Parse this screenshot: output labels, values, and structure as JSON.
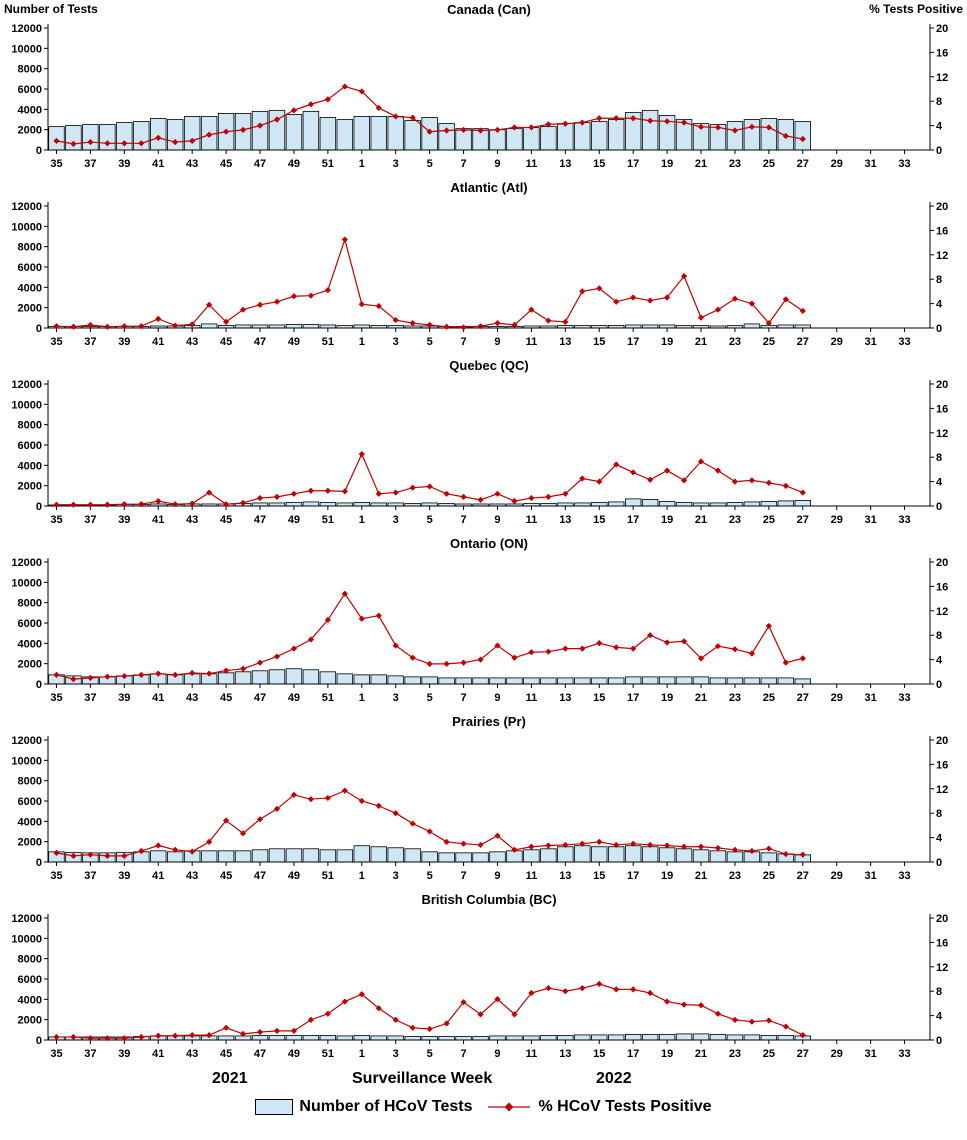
{
  "page": {
    "left_axis_title": "Number of Tests",
    "right_axis_title": "% Tests Positive",
    "xlabel": "Surveillance Week",
    "year_left": "2021",
    "year_right": "2022"
  },
  "legend": {
    "bars": "Number of HCoV Tests",
    "line": "% HCoV Tests Positive"
  },
  "colors": {
    "bar_fill": "#cfe6f5",
    "bar_border": "#000000",
    "line": "#c00000"
  },
  "chart_data": {
    "type": "bar",
    "note": "combo bar+line panels; bars = Number of HCoV Tests (left axis), line = % HCoV Tests Positive (right axis)",
    "x_weeks": [
      35,
      36,
      37,
      38,
      39,
      40,
      41,
      42,
      43,
      44,
      45,
      46,
      47,
      48,
      49,
      50,
      51,
      52,
      1,
      2,
      3,
      4,
      5,
      6,
      7,
      8,
      9,
      10,
      11,
      12,
      13,
      14,
      15,
      16,
      17,
      18,
      19,
      20,
      21,
      22,
      23,
      24,
      25,
      26,
      27,
      28,
      29,
      30,
      31,
      32,
      33,
      34
    ],
    "x_tick_step": 2,
    "left_axis": {
      "title": "Number of Tests",
      "min": 0,
      "max": 12000,
      "tick": 2000
    },
    "right_axis": {
      "title": "% Tests Positive",
      "min": 0,
      "max": 20,
      "tick": 4
    },
    "panels": [
      {
        "title": "Canada (Can)",
        "bars": [
          2300,
          2400,
          2500,
          2500,
          2700,
          2800,
          3100,
          3000,
          3300,
          3300,
          3600,
          3600,
          3800,
          3900,
          3500,
          3800,
          3200,
          3000,
          3300,
          3300,
          3300,
          2900,
          3200,
          2600,
          2100,
          2100,
          2000,
          2100,
          2200,
          2300,
          2600,
          2700,
          2800,
          3000,
          3700,
          3900,
          3400,
          3000,
          2600,
          2500,
          2800,
          3000,
          3100,
          3000,
          2800
        ],
        "line": [
          1.5,
          1.0,
          1.3,
          1.1,
          1.1,
          1.1,
          2.0,
          1.3,
          1.5,
          2.5,
          3.0,
          3.3,
          4.0,
          5.0,
          6.5,
          7.5,
          8.3,
          10.4,
          9.6,
          6.9,
          5.5,
          5.3,
          3.0,
          3.2,
          3.3,
          3.2,
          3.3,
          3.7,
          3.7,
          4.2,
          4.3,
          4.5,
          5.2,
          5.2,
          5.2,
          4.8,
          4.7,
          4.5,
          3.8,
          3.7,
          3.2,
          3.8,
          3.7,
          2.3,
          1.8
        ]
      },
      {
        "title": "Atlantic (Atl)",
        "bars": [
          150,
          150,
          150,
          150,
          150,
          150,
          200,
          200,
          250,
          400,
          250,
          300,
          300,
          300,
          350,
          350,
          300,
          250,
          300,
          250,
          250,
          200,
          200,
          150,
          150,
          150,
          150,
          150,
          200,
          200,
          250,
          250,
          250,
          250,
          300,
          300,
          300,
          250,
          250,
          200,
          250,
          400,
          250,
          300,
          300
        ],
        "line": [
          0.3,
          0.2,
          0.5,
          0.2,
          0.3,
          0.3,
          1.5,
          0.4,
          0.6,
          3.8,
          1.0,
          3.0,
          3.8,
          4.3,
          5.2,
          5.3,
          6.2,
          14.5,
          3.9,
          3.6,
          1.3,
          0.8,
          0.5,
          0.2,
          0.1,
          0.3,
          0.8,
          0.5,
          3.0,
          1.2,
          1.0,
          6.0,
          6.5,
          4.3,
          5.0,
          4.5,
          5.0,
          8.5,
          1.7,
          3.0,
          4.8,
          4.0,
          0.8,
          4.7,
          2.8
        ]
      },
      {
        "title": "Quebec (QC)",
        "bars": [
          100,
          100,
          100,
          100,
          150,
          150,
          200,
          150,
          200,
          200,
          200,
          250,
          300,
          300,
          350,
          400,
          350,
          300,
          350,
          300,
          300,
          250,
          300,
          250,
          200,
          200,
          200,
          200,
          250,
          250,
          300,
          300,
          350,
          400,
          700,
          650,
          450,
          350,
          300,
          300,
          350,
          400,
          450,
          500,
          550
        ],
        "line": [
          0.2,
          0.2,
          0.2,
          0.2,
          0.3,
          0.3,
          0.8,
          0.3,
          0.4,
          2.2,
          0.3,
          0.5,
          1.3,
          1.5,
          2.0,
          2.5,
          2.5,
          2.4,
          8.5,
          2.0,
          2.2,
          3.0,
          3.2,
          2.0,
          1.5,
          1.0,
          2.0,
          0.8,
          1.3,
          1.5,
          2.0,
          4.5,
          4.0,
          6.8,
          5.5,
          4.3,
          5.8,
          4.2,
          7.3,
          5.8,
          4.0,
          4.2,
          3.8,
          3.3,
          2.2
        ]
      },
      {
        "title": "Ontario (ON)",
        "bars": [
          900,
          800,
          700,
          700,
          800,
          900,
          1000,
          900,
          1000,
          1000,
          1100,
          1200,
          1300,
          1400,
          1500,
          1400,
          1200,
          1000,
          900,
          900,
          800,
          700,
          700,
          600,
          600,
          600,
          600,
          600,
          600,
          600,
          600,
          600,
          600,
          600,
          700,
          700,
          700,
          700,
          700,
          600,
          600,
          600,
          600,
          600,
          500
        ],
        "line": [
          1.5,
          0.8,
          1.0,
          1.2,
          1.3,
          1.5,
          1.7,
          1.5,
          1.8,
          1.7,
          2.2,
          2.5,
          3.5,
          4.5,
          5.8,
          7.3,
          10.5,
          14.8,
          10.7,
          11.2,
          6.3,
          4.3,
          3.3,
          3.3,
          3.5,
          4.0,
          6.3,
          4.3,
          5.2,
          5.3,
          5.8,
          5.8,
          6.7,
          6.0,
          5.8,
          8.0,
          6.8,
          7.0,
          4.2,
          6.2,
          5.7,
          5.0,
          9.5,
          3.5,
          4.2
        ]
      },
      {
        "title": "Prairies (Pr)",
        "bars": [
          1000,
          950,
          900,
          900,
          950,
          1000,
          1100,
          1000,
          1100,
          1100,
          1100,
          1100,
          1200,
          1300,
          1300,
          1300,
          1200,
          1200,
          1600,
          1500,
          1400,
          1300,
          1000,
          900,
          900,
          900,
          1000,
          1100,
          1200,
          1300,
          1500,
          1600,
          1500,
          1500,
          1600,
          1500,
          1400,
          1300,
          1200,
          1100,
          1000,
          1000,
          900,
          800,
          700
        ],
        "line": [
          1.5,
          1.0,
          1.2,
          1.0,
          1.0,
          1.8,
          2.7,
          2.0,
          1.7,
          3.3,
          6.8,
          4.7,
          7.0,
          8.7,
          11.0,
          10.3,
          10.5,
          11.7,
          10.0,
          9.2,
          8.0,
          6.3,
          5.0,
          3.3,
          3.0,
          2.8,
          4.3,
          2.0,
          2.5,
          2.7,
          2.8,
          3.0,
          3.3,
          2.8,
          3.0,
          2.8,
          2.7,
          2.5,
          2.5,
          2.3,
          2.0,
          1.8,
          2.2,
          1.3,
          1.2
        ]
      },
      {
        "title": "British Columbia (BC)",
        "bars": [
          300,
          300,
          300,
          300,
          300,
          350,
          400,
          400,
          400,
          400,
          400,
          400,
          450,
          450,
          450,
          450,
          450,
          400,
          450,
          400,
          400,
          350,
          350,
          350,
          350,
          350,
          400,
          400,
          400,
          450,
          450,
          500,
          500,
          500,
          550,
          550,
          550,
          600,
          600,
          550,
          500,
          500,
          450,
          450,
          400
        ],
        "line": [
          0.5,
          0.5,
          0.3,
          0.3,
          0.3,
          0.5,
          0.7,
          0.7,
          0.8,
          0.8,
          2.0,
          1.0,
          1.3,
          1.5,
          1.5,
          3.3,
          4.3,
          6.3,
          7.5,
          5.2,
          3.3,
          2.0,
          1.8,
          2.7,
          6.2,
          4.2,
          6.7,
          4.2,
          7.7,
          8.5,
          8.0,
          8.5,
          9.2,
          8.3,
          8.3,
          7.7,
          6.3,
          5.8,
          5.7,
          4.3,
          3.3,
          3.0,
          3.2,
          2.2,
          0.8
        ]
      }
    ]
  }
}
